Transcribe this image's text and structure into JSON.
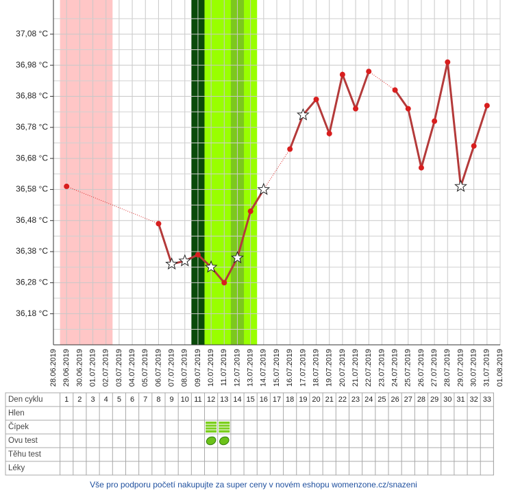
{
  "chart_data": {
    "type": "line",
    "x": [
      "28.06.2019",
      "29.06.2019",
      "30.06.2019",
      "01.07.2019",
      "02.07.2019",
      "03.07.2019",
      "04.07.2019",
      "05.07.2019",
      "06.07.2019",
      "07.07.2019",
      "08.07.2019",
      "09.07.2019",
      "10.07.2019",
      "11.07.2019",
      "12.07.2019",
      "13.07.2019",
      "14.07.2019",
      "15.07.2019",
      "16.07.2019",
      "17.07.2019",
      "18.07.2019",
      "19.07.2019",
      "20.07.2019",
      "21.07.2019",
      "22.07.2019",
      "23.07.2019",
      "24.07.2019",
      "25.07.2019",
      "26.07.2019",
      "27.07.2019",
      "28.07.2019",
      "29.07.2019",
      "30.07.2019",
      "31.07.2019",
      "01.08.2019"
    ],
    "values": [
      null,
      36.59,
      null,
      null,
      null,
      null,
      null,
      null,
      36.47,
      36.34,
      36.35,
      36.37,
      36.33,
      36.28,
      36.36,
      36.51,
      36.58,
      null,
      36.71,
      36.82,
      36.87,
      36.76,
      36.95,
      36.84,
      36.96,
      null,
      36.9,
      36.84,
      36.65,
      36.8,
      36.99,
      36.59,
      36.72,
      36.85,
      null
    ],
    "markers": [
      null,
      "dot",
      null,
      null,
      null,
      null,
      null,
      null,
      "dot",
      "star",
      "star",
      "dot",
      "star",
      "dot",
      "star",
      "dot",
      "star",
      null,
      "dot",
      "star",
      "dot",
      "dot",
      "dot",
      "dot",
      "dot",
      null,
      "dot",
      "dot",
      "dot",
      "dot",
      "dot",
      "star",
      "dot",
      "dot",
      null
    ],
    "color": "#b43a3a",
    "dot_color": "#d81e1e",
    "ylim": [
      36.08,
      37.19
    ],
    "yticks": [
      {
        "value": 36.18,
        "label": "36,18 °C"
      },
      {
        "value": 36.28,
        "label": "36,28 °C"
      },
      {
        "value": 36.38,
        "label": "36,38 °C"
      },
      {
        "value": 36.48,
        "label": "36,48 °C"
      },
      {
        "value": 36.58,
        "label": "36,58 °C"
      },
      {
        "value": 36.68,
        "label": "36,68 °C"
      },
      {
        "value": 36.78,
        "label": "36,78 °C"
      },
      {
        "value": 36.88,
        "label": "36,88 °C"
      },
      {
        "value": 36.98,
        "label": "36,98 °C"
      },
      {
        "value": 37.08,
        "label": "37,08 °C"
      }
    ],
    "grid": true,
    "minor_grid": true,
    "bands": [
      {
        "from_day": 1,
        "to_day": 4,
        "color": "#ffc6c6"
      },
      {
        "from_day": 11,
        "to_day": 11,
        "color": "#0a4a0a"
      },
      {
        "from_day": 12,
        "to_day": 15,
        "color": "#99ff00"
      },
      {
        "from_day": 14,
        "to_day": 14,
        "color": "#7cc81e"
      }
    ]
  },
  "table": {
    "row_labels": [
      "Den cyklu",
      "Hlen",
      "Čípek",
      "Ovu test",
      "Těhu test",
      "Léky"
    ],
    "cycle_days": [
      1,
      2,
      3,
      4,
      5,
      6,
      7,
      8,
      9,
      10,
      11,
      12,
      13,
      14,
      15,
      16,
      17,
      18,
      19,
      20,
      21,
      22,
      23,
      24,
      25,
      26,
      27,
      28,
      29,
      30,
      31,
      32,
      33
    ],
    "cipek_days": [
      12,
      13
    ],
    "ovu_test_days": [
      12,
      13
    ]
  },
  "footer": "Vše pro podporu početí nakupujte za super ceny v novém eshopu womenzone.cz/snazeni"
}
